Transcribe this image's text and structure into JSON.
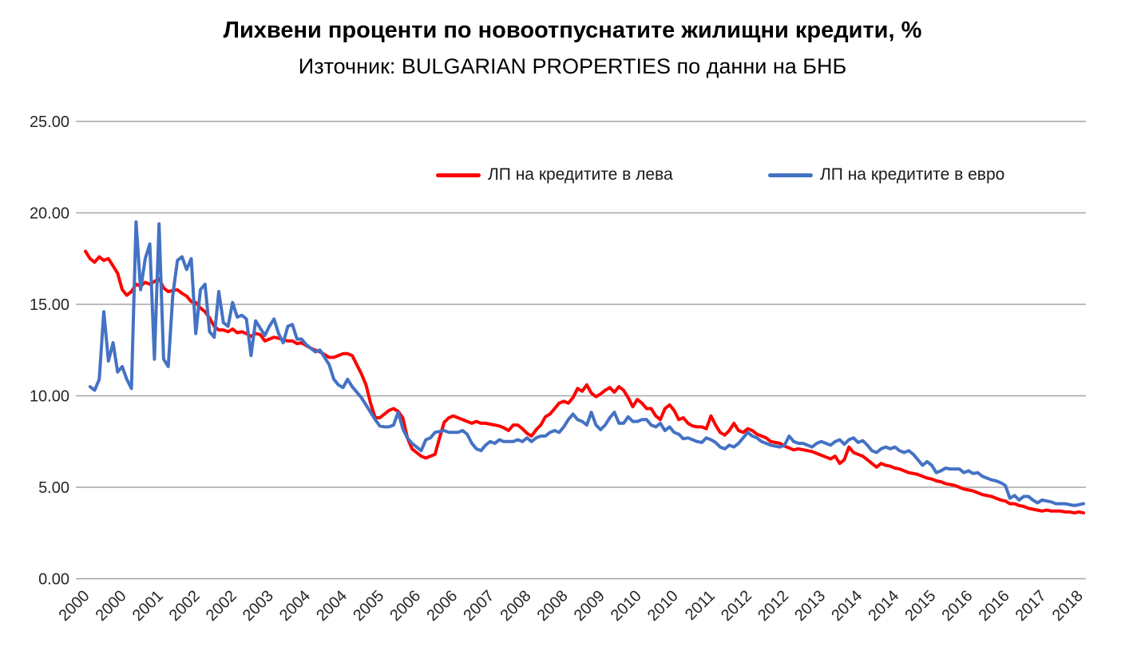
{
  "chart_data": {
    "type": "line",
    "title": "Лихвени проценти по новоотпуснатите жилищни кредити, %",
    "subtitle": "Източник: BULGARIAN PROPERTIES по данни на БНБ",
    "ylabel": "",
    "xlabel": "",
    "ylim": [
      0,
      25
    ],
    "grid": true,
    "grid_color": "#a6a6a6",
    "axis_text_color": "#262626",
    "legend_position": "top-inside",
    "y_ticks": [
      {
        "value": 25,
        "label": "25.00"
      },
      {
        "value": 20,
        "label": "20.00"
      },
      {
        "value": 15,
        "label": "15.00"
      },
      {
        "value": 10,
        "label": "10.00"
      },
      {
        "value": 5,
        "label": "5.00"
      },
      {
        "value": 0,
        "label": "0.00"
      }
    ],
    "x_tick_labels": [
      "2000",
      "2000",
      "2001",
      "2002",
      "2002",
      "2003",
      "2004",
      "2004",
      "2005",
      "2006",
      "2006",
      "2007",
      "2008",
      "2008",
      "2009",
      "2010",
      "2010",
      "2011",
      "2012",
      "2012",
      "2013",
      "2014",
      "2014",
      "2015",
      "2016",
      "2016",
      "2017",
      "2018"
    ],
    "x_months_per_tick": 8,
    "series": [
      {
        "name": "ЛП на кредитите в лева",
        "color": "#ff0000",
        "start_month": 0,
        "values": [
          17.9,
          17.5,
          17.3,
          17.6,
          17.4,
          17.5,
          17.1,
          16.7,
          15.8,
          15.5,
          15.7,
          16.1,
          16.0,
          16.2,
          16.1,
          16.25,
          16.4,
          15.9,
          15.7,
          15.75,
          15.8,
          15.6,
          15.45,
          15.15,
          15.1,
          14.8,
          14.6,
          14.25,
          13.8,
          13.6,
          13.6,
          13.5,
          13.65,
          13.45,
          13.5,
          13.4,
          13.25,
          13.4,
          13.35,
          13.0,
          13.1,
          13.2,
          13.15,
          13.05,
          13.0,
          13.0,
          12.85,
          12.9,
          12.75,
          12.6,
          12.5,
          12.4,
          12.25,
          12.1,
          12.1,
          12.2,
          12.3,
          12.3,
          12.2,
          11.7,
          11.2,
          10.6,
          9.6,
          8.8,
          8.8,
          9.0,
          9.2,
          9.3,
          9.15,
          8.8,
          7.7,
          7.1,
          6.9,
          6.7,
          6.6,
          6.7,
          6.8,
          7.7,
          8.55,
          8.8,
          8.9,
          8.8,
          8.7,
          8.6,
          8.5,
          8.6,
          8.5,
          8.5,
          8.45,
          8.4,
          8.35,
          8.25,
          8.1,
          8.4,
          8.4,
          8.2,
          7.95,
          7.8,
          8.15,
          8.4,
          8.85,
          9.0,
          9.3,
          9.6,
          9.7,
          9.6,
          9.9,
          10.4,
          10.25,
          10.6,
          10.15,
          9.95,
          10.1,
          10.3,
          10.45,
          10.2,
          10.5,
          10.3,
          9.9,
          9.4,
          9.8,
          9.6,
          9.3,
          9.3,
          8.9,
          8.7,
          9.3,
          9.5,
          9.2,
          8.7,
          8.8,
          8.5,
          8.35,
          8.3,
          8.3,
          8.2,
          8.9,
          8.4,
          8.0,
          7.85,
          8.1,
          8.5,
          8.1,
          8.0,
          8.2,
          8.1,
          7.9,
          7.8,
          7.7,
          7.5,
          7.45,
          7.4,
          7.25,
          7.15,
          7.05,
          7.1,
          7.05,
          7.0,
          6.95,
          6.85,
          6.75,
          6.65,
          6.55,
          6.7,
          6.3,
          6.5,
          7.2,
          6.9,
          6.8,
          6.7,
          6.5,
          6.3,
          6.1,
          6.3,
          6.2,
          6.15,
          6.05,
          6.0,
          5.9,
          5.8,
          5.75,
          5.7,
          5.6,
          5.5,
          5.45,
          5.35,
          5.3,
          5.2,
          5.15,
          5.1,
          5.0,
          4.9,
          4.85,
          4.8,
          4.7,
          4.6,
          4.55,
          4.5,
          4.4,
          4.3,
          4.25,
          4.1,
          4.1,
          4.0,
          3.95,
          3.85,
          3.8,
          3.75,
          3.7,
          3.75,
          3.7,
          3.7,
          3.7,
          3.65,
          3.65,
          3.6,
          3.65,
          3.6
        ]
      },
      {
        "name": "ЛП на кредитите в евро",
        "color": "#4472c4",
        "start_month": 1,
        "values": [
          10.5,
          10.3,
          10.9,
          14.6,
          11.9,
          12.9,
          11.3,
          11.6,
          10.9,
          10.4,
          19.5,
          15.8,
          17.5,
          18.3,
          12.0,
          19.4,
          12.0,
          11.6,
          15.5,
          17.4,
          17.6,
          16.9,
          17.5,
          13.4,
          15.8,
          16.1,
          13.5,
          13.2,
          15.7,
          14.0,
          13.8,
          15.1,
          14.3,
          14.4,
          14.2,
          12.2,
          14.1,
          13.7,
          13.3,
          13.8,
          14.2,
          13.4,
          12.9,
          13.8,
          13.9,
          13.1,
          13.1,
          12.8,
          12.6,
          12.4,
          12.5,
          12.1,
          11.7,
          10.9,
          10.6,
          10.45,
          10.9,
          10.5,
          10.2,
          9.9,
          9.5,
          9.1,
          8.7,
          8.35,
          8.3,
          8.3,
          8.4,
          9.1,
          8.2,
          7.7,
          7.4,
          7.2,
          7.0,
          7.6,
          7.7,
          8.0,
          8.05,
          8.1,
          8.0,
          8.0,
          8.0,
          8.1,
          7.9,
          7.4,
          7.1,
          7.0,
          7.3,
          7.5,
          7.4,
          7.6,
          7.5,
          7.5,
          7.5,
          7.6,
          7.5,
          7.7,
          7.5,
          7.7,
          7.8,
          7.8,
          8.0,
          8.1,
          8.0,
          8.3,
          8.7,
          9.0,
          8.7,
          8.6,
          8.4,
          9.1,
          8.4,
          8.15,
          8.4,
          8.8,
          9.1,
          8.5,
          8.5,
          8.85,
          8.6,
          8.6,
          8.7,
          8.7,
          8.4,
          8.3,
          8.5,
          8.1,
          8.3,
          8.0,
          7.9,
          7.65,
          7.7,
          7.6,
          7.5,
          7.45,
          7.7,
          7.6,
          7.45,
          7.2,
          7.1,
          7.3,
          7.2,
          7.4,
          7.7,
          8.0,
          7.8,
          7.7,
          7.5,
          7.4,
          7.3,
          7.25,
          7.2,
          7.3,
          7.8,
          7.5,
          7.4,
          7.4,
          7.3,
          7.2,
          7.4,
          7.5,
          7.4,
          7.3,
          7.5,
          7.6,
          7.35,
          7.6,
          7.7,
          7.45,
          7.55,
          7.3,
          7.0,
          6.9,
          7.1,
          7.2,
          7.1,
          7.2,
          7.0,
          6.9,
          7.0,
          6.8,
          6.5,
          6.2,
          6.4,
          6.2,
          5.8,
          5.9,
          6.05,
          6.0,
          6.0,
          6.0,
          5.8,
          5.9,
          5.75,
          5.8,
          5.6,
          5.5,
          5.4,
          5.35,
          5.25,
          5.1,
          4.4,
          4.55,
          4.3,
          4.5,
          4.5,
          4.3,
          4.15,
          4.3,
          4.25,
          4.2,
          4.1,
          4.1,
          4.1,
          4.05,
          4.0,
          4.05,
          4.1
        ]
      }
    ]
  }
}
